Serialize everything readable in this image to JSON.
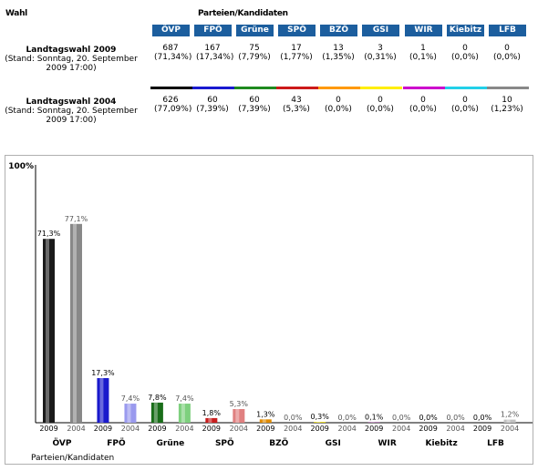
{
  "table": {
    "wahl_header": "Wahl",
    "parties_header": "Parteien/Kandidaten",
    "parties": [
      "ÖVP",
      "FPÖ",
      "Grüne",
      "SPÖ",
      "BZÖ",
      "GSI",
      "WIR",
      "Kiebitz",
      "LFB"
    ],
    "party_colors": [
      "#000000",
      "#1a1ad0",
      "#1f8a1f",
      "#cc1a1a",
      "#ff9900",
      "#ffee00",
      "#cc00cc",
      "#22d0e8",
      "#888888"
    ],
    "rows": [
      {
        "title": "Landtagswahl 2009",
        "stand": "(Stand: Sonntag, 20. September 2009 17:00)",
        "votes": [
          "687",
          "167",
          "75",
          "17",
          "13",
          "3",
          "1",
          "0",
          "0"
        ],
        "percents": [
          "(71,34%)",
          "(17,34%)",
          "(7,79%)",
          "(1,77%)",
          "(1,35%)",
          "(0,31%)",
          "(0,1%)",
          "(0,0%)",
          "(0,0%)"
        ]
      },
      {
        "title": "Landtagswahl 2004",
        "stand": "(Stand: Sonntag, 20. September 2009 17:00)",
        "votes": [
          "626",
          "60",
          "60",
          "43",
          "0",
          "0",
          "0",
          "0",
          "10"
        ],
        "percents": [
          "(77,09%)",
          "(7,39%)",
          "(7,39%)",
          "(5,3%)",
          "(0,0%)",
          "(0,0%)",
          "(0,0%)",
          "(0,0%)",
          "(1,23%)"
        ]
      }
    ]
  },
  "chart_data": {
    "type": "bar",
    "y_axis_label": "100%",
    "ylim": [
      0,
      100
    ],
    "xlabel": "Parteien/Kandidaten",
    "categories": [
      "ÖVP",
      "FPÖ",
      "Grüne",
      "SPÖ",
      "BZÖ",
      "GSI",
      "WIR",
      "Kiebitz",
      "LFB"
    ],
    "series": [
      {
        "name": "2009",
        "values": [
          71.3,
          17.3,
          7.8,
          1.8,
          1.3,
          0.3,
          0.1,
          0.0,
          0.0
        ],
        "labels": [
          "71,3%",
          "17,3%",
          "7,8%",
          "1,8%",
          "1,3%",
          "0,3%",
          "0,1%",
          "0,0%",
          "0,0%"
        ],
        "colors": [
          "#1a1a1a",
          "#1a1acc",
          "#1a6e1a",
          "#c81e1e",
          "#e08a00",
          "#e0d000",
          "#b000b0",
          "#20c0d8",
          "#808080"
        ]
      },
      {
        "name": "2004",
        "values": [
          77.1,
          7.4,
          7.4,
          5.3,
          0.0,
          0.0,
          0.0,
          0.0,
          1.2
        ],
        "labels": [
          "77,1%",
          "7,4%",
          "7,4%",
          "5,3%",
          "0,0%",
          "0,0%",
          "0,0%",
          "0,0%",
          "1,2%"
        ],
        "colors": [
          "#888888",
          "#9a9aee",
          "#7ed07e",
          "#e08080",
          "#f0c070",
          "#f0e880",
          "#e080e0",
          "#90e8f0",
          "#c0c0c0"
        ]
      }
    ]
  }
}
